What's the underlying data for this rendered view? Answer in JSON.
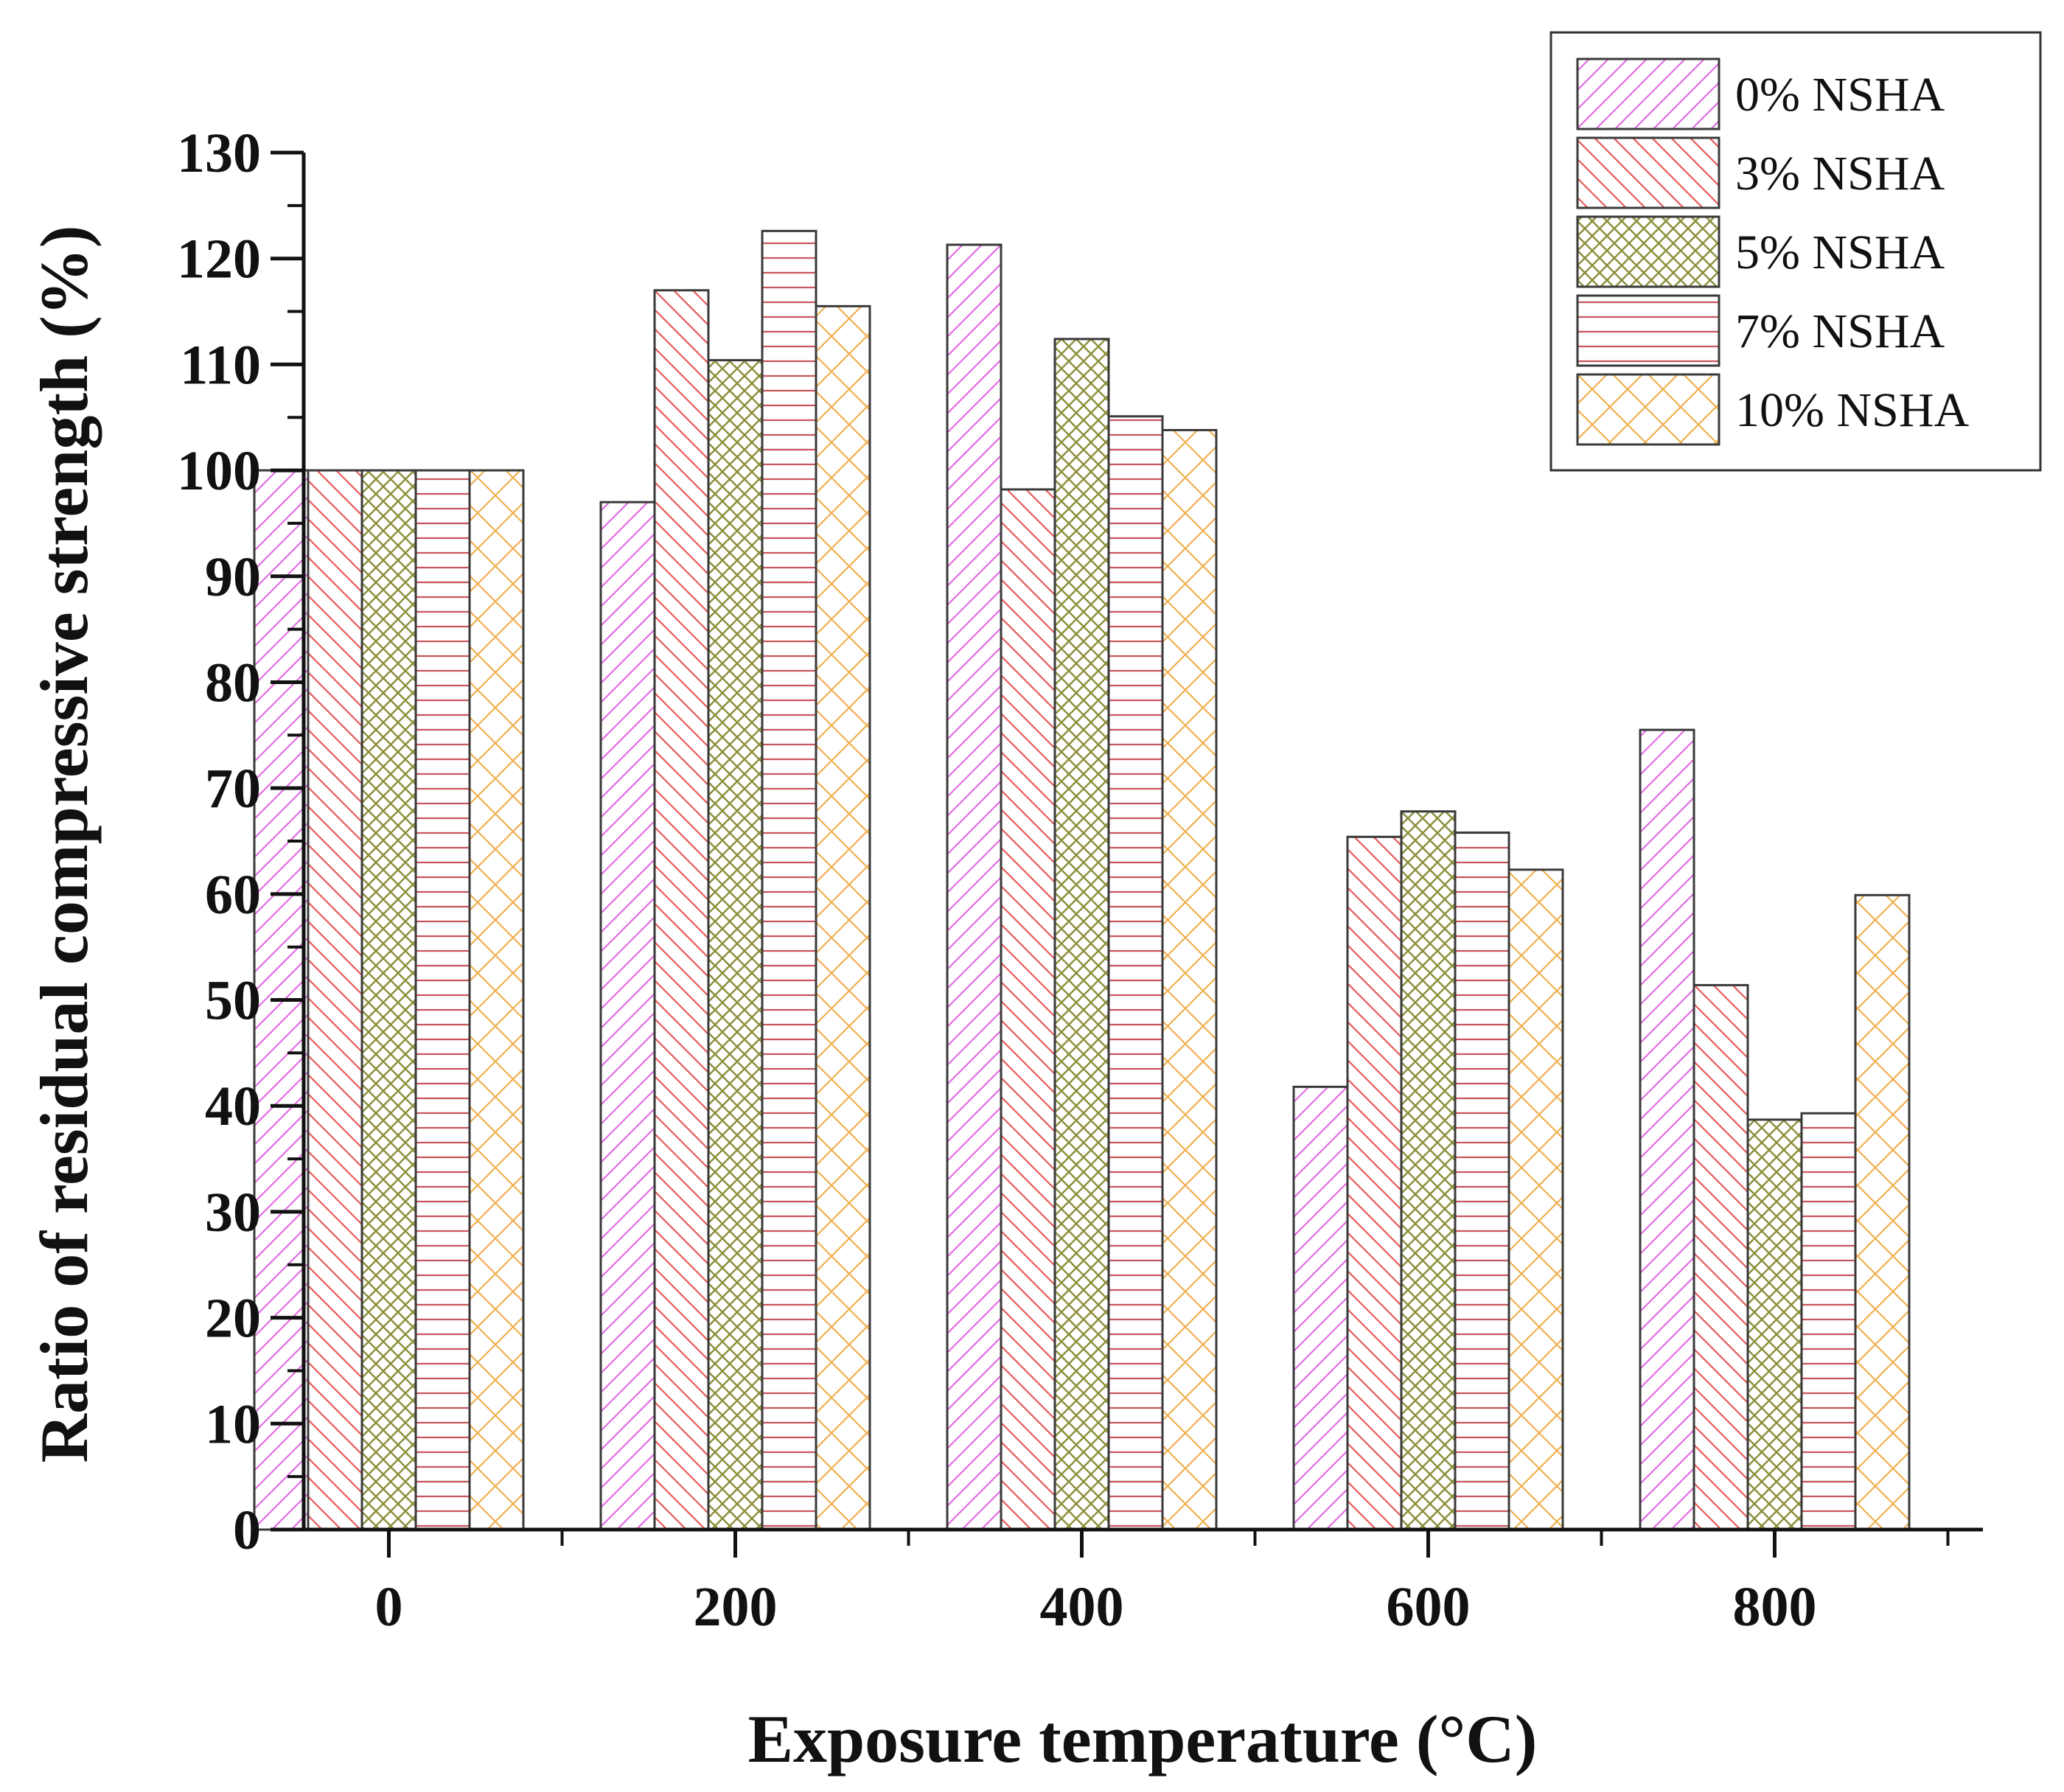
{
  "chart_data": {
    "type": "bar",
    "title": "",
    "xlabel": "Exposure temperature (°C)",
    "ylabel": "Ratio of residual compressive strength (%)",
    "categories": [
      "0",
      "200",
      "400",
      "600",
      "800"
    ],
    "ylim": [
      0,
      130
    ],
    "yticks": [
      0,
      10,
      20,
      30,
      40,
      50,
      60,
      70,
      80,
      90,
      100,
      110,
      120,
      130
    ],
    "legend_position": "top-right",
    "series": [
      {
        "name": "0% NSHA",
        "pattern": "diagonal-up",
        "color": "#e36ce3",
        "values": [
          100,
          97,
          121.3,
          41.8,
          75.5
        ]
      },
      {
        "name": "3% NSHA",
        "pattern": "diagonal-down",
        "color": "#e85a5a",
        "values": [
          100,
          117,
          98.2,
          65.4,
          51.4
        ]
      },
      {
        "name": "5% NSHA",
        "pattern": "crosshatch",
        "color": "#8c8f3a",
        "values": [
          100,
          110.4,
          112.4,
          67.8,
          38.7
        ]
      },
      {
        "name": "7% NSHA",
        "pattern": "horizontal",
        "color": "#c9555e",
        "values": [
          100,
          122.6,
          105.1,
          65.8,
          39.3
        ]
      },
      {
        "name": "10% NSHA",
        "pattern": "diamond",
        "color": "#f0b050",
        "values": [
          100,
          115.5,
          103.8,
          62.3,
          59.9
        ]
      }
    ]
  }
}
